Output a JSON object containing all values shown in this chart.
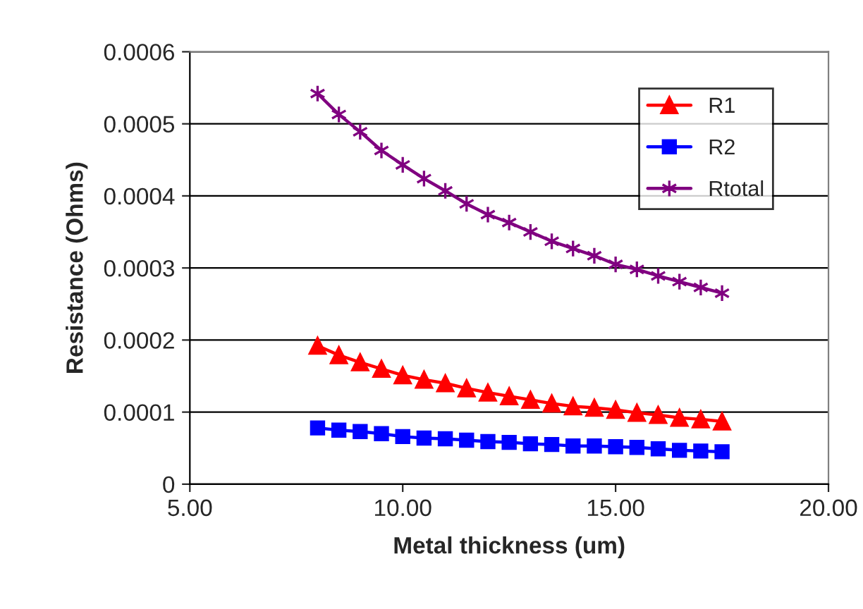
{
  "chart_data": {
    "type": "line",
    "xlabel": "Metal thickness (um)",
    "ylabel": "Resistance (Ohms)",
    "x": [
      8,
      8.5,
      9,
      9.5,
      10,
      10.5,
      11,
      11.5,
      12,
      12.5,
      13,
      13.5,
      14,
      14.5,
      15,
      15.5,
      16,
      16.5,
      17,
      17.5
    ],
    "series": [
      {
        "name": "R1",
        "color": "#ff0000",
        "marker": "triangle",
        "values": [
          0.000192,
          0.000179,
          0.000169,
          0.00016,
          0.000151,
          0.000145,
          0.00014,
          0.000133,
          0.000127,
          0.000122,
          0.000117,
          0.000112,
          0.000108,
          0.000106,
          0.000103,
          9.9e-05,
          9.6e-05,
          9.2e-05,
          9e-05,
          8.7e-05
        ]
      },
      {
        "name": "R2",
        "color": "#0000ff",
        "marker": "square",
        "values": [
          7.8e-05,
          7.5e-05,
          7.3e-05,
          7e-05,
          6.6e-05,
          6.4e-05,
          6.3e-05,
          6.1e-05,
          5.9e-05,
          5.8e-05,
          5.6e-05,
          5.5e-05,
          5.3e-05,
          5.3e-05,
          5.2e-05,
          5.1e-05,
          4.9e-05,
          4.7e-05,
          4.6e-05,
          4.5e-05
        ]
      },
      {
        "name": "Rtotal",
        "color": "#800080",
        "marker": "cross",
        "values": [
          0.000542,
          0.000513,
          0.000489,
          0.000463,
          0.000443,
          0.000424,
          0.000407,
          0.000389,
          0.000374,
          0.000363,
          0.00035,
          0.000337,
          0.000327,
          0.000317,
          0.000305,
          0.000298,
          0.000289,
          0.000281,
          0.000273,
          0.000265
        ]
      }
    ],
    "xlim": [
      5,
      20
    ],
    "xticks": [
      {
        "value": 5,
        "label": "5.00"
      },
      {
        "value": 10,
        "label": "10.00"
      },
      {
        "value": 15,
        "label": "15.00"
      },
      {
        "value": 20,
        "label": "20.00"
      }
    ],
    "ylim": [
      0,
      0.0006
    ],
    "yticks": [
      0,
      0.0001,
      0.0002,
      0.0003,
      0.0004,
      0.0005,
      0.0006
    ],
    "grid": "y",
    "legend": "top right",
    "line_style": "solid"
  }
}
